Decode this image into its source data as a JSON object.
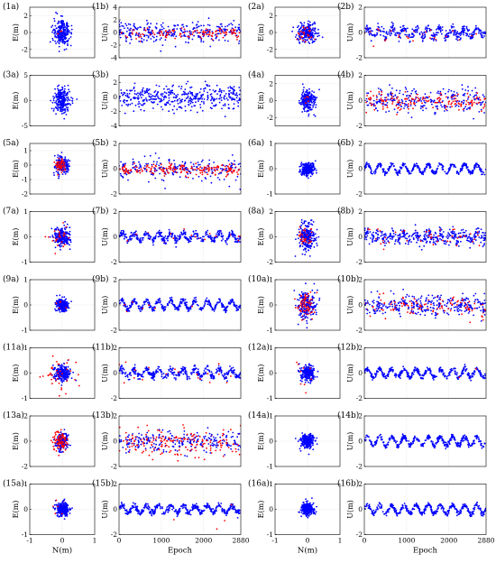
{
  "figure": {
    "n_rows": 8,
    "n_pairs_per_row": 2,
    "colors": {
      "series_red": "#ff0000",
      "series_blue": "#0000ff",
      "grid": "#d9d9d9",
      "axis": "#000000"
    },
    "x_axis_bottom_scatter": {
      "label": "N(m)",
      "ticks": [
        "-1",
        "0",
        "1"
      ]
    },
    "x_axis_bottom_time": {
      "label": "Epoch",
      "ticks": [
        "0",
        "1000",
        "2000",
        "2880"
      ]
    }
  },
  "chart_data": [
    {
      "id": "1a",
      "type": "scatter",
      "label": "(1a)",
      "ylabel": "E(m)",
      "yticks": [
        "2",
        "0",
        "-2"
      ],
      "ylim": [
        -3,
        3
      ],
      "xlim": [
        -1,
        1
      ],
      "spread": [
        0.12,
        0.8
      ],
      "red_spread": [
        0.08,
        0.3
      ],
      "red_frac": 0.02
    },
    {
      "id": "1b",
      "type": "scatter",
      "label": "(1b)",
      "ylabel": "U(m)",
      "yticks": [
        "4",
        "2",
        "0",
        "-2",
        "-4"
      ],
      "ylim": [
        -4,
        4
      ],
      "xlim": [
        0,
        2880
      ],
      "noise": 0.8,
      "red_noise": 0.35,
      "red_frac": 0.25,
      "amp": 0.3
    },
    {
      "id": "2a",
      "type": "scatter",
      "label": "(2a)",
      "ylabel": "E(m)",
      "yticks": [
        "2",
        "0",
        "-2"
      ],
      "ylim": [
        -3,
        3
      ],
      "xlim": [
        -1,
        1
      ],
      "spread": [
        0.15,
        0.55
      ],
      "red_spread": [
        0.12,
        0.5
      ],
      "red_frac": 0.15
    },
    {
      "id": "2b",
      "type": "scatter",
      "label": "(2b)",
      "ylabel": "U(m)",
      "yticks": [
        "2",
        "0",
        "-2"
      ],
      "ylim": [
        -2,
        2
      ],
      "xlim": [
        0,
        2880
      ],
      "noise": 0.2,
      "red_noise": 0.25,
      "red_frac": 0.08,
      "amp": 0.3
    },
    {
      "id": "3a",
      "type": "scatter",
      "label": "(3a)",
      "ylabel": "E(m)",
      "yticks": [
        "5",
        "0",
        "-5"
      ],
      "ylim": [
        -5,
        5
      ],
      "xlim": [
        -1,
        1
      ],
      "spread": [
        0.12,
        1.2
      ],
      "red_spread": [
        0.05,
        0.2
      ],
      "red_frac": 0.0
    },
    {
      "id": "3b",
      "type": "scatter",
      "label": "(3b)",
      "ylabel": "U(m)",
      "yticks": [
        "2",
        "0",
        "-2",
        "-4"
      ],
      "ylim": [
        -4,
        3
      ],
      "xlim": [
        0,
        2880
      ],
      "noise": 0.85,
      "red_noise": 0.3,
      "red_frac": 0.0,
      "amp": 0.25
    },
    {
      "id": "4a",
      "type": "scatter",
      "label": "(4a)",
      "ylabel": "E(m)",
      "yticks": [
        "2",
        "0",
        "-2"
      ],
      "ylim": [
        -3,
        3
      ],
      "xlim": [
        -1,
        1
      ],
      "spread": [
        0.1,
        0.6
      ],
      "red_spread": [
        0.06,
        0.25
      ],
      "red_frac": 0.05
    },
    {
      "id": "4b",
      "type": "scatter",
      "label": "(4b)",
      "ylabel": "U(m)",
      "yticks": [
        "2",
        "0",
        "-2"
      ],
      "ylim": [
        -2,
        2
      ],
      "xlim": [
        0,
        2880
      ],
      "noise": 0.45,
      "red_noise": 0.3,
      "red_frac": 0.45,
      "amp": 0.2
    },
    {
      "id": "5a",
      "type": "scatter",
      "label": "(5a)",
      "ylabel": "E(m)",
      "yticks": [
        "1",
        "0",
        "-1",
        "-2"
      ],
      "ylim": [
        -2,
        1.5
      ],
      "xlim": [
        -1,
        1
      ],
      "spread": [
        0.1,
        0.3
      ],
      "red_spread": [
        0.08,
        0.2
      ],
      "red_frac": 0.3
    },
    {
      "id": "5b",
      "type": "scatter",
      "label": "(5b)",
      "ylabel": "U(m)",
      "yticks": [
        "2",
        "0",
        "-2"
      ],
      "ylim": [
        -2,
        2
      ],
      "xlim": [
        0,
        2880
      ],
      "noise": 0.45,
      "red_noise": 0.2,
      "red_frac": 0.5,
      "amp": 0.15
    },
    {
      "id": "6a",
      "type": "scatter",
      "label": "(6a)",
      "ylabel": "E(m)",
      "yticks": [
        "1",
        "0",
        "-1"
      ],
      "ylim": [
        -1,
        1
      ],
      "xlim": [
        -1,
        1
      ],
      "spread": [
        0.1,
        0.12
      ],
      "red_spread": [
        0.05,
        0.05
      ],
      "red_frac": 0.0
    },
    {
      "id": "6b",
      "type": "scatter",
      "label": "(6b)",
      "ylabel": "U(m)",
      "yticks": [
        "2",
        "0",
        "-2"
      ],
      "ylim": [
        -2,
        2
      ],
      "xlim": [
        0,
        2880
      ],
      "noise": 0.08,
      "red_noise": 0.1,
      "red_frac": 0.0,
      "amp": 0.35
    },
    {
      "id": "7a",
      "type": "scatter",
      "label": "(7a)",
      "ylabel": "E(m)",
      "yticks": [
        "1",
        "0",
        "-1"
      ],
      "ylim": [
        -1,
        1
      ],
      "xlim": [
        -1,
        1
      ],
      "spread": [
        0.12,
        0.18
      ],
      "red_spread": [
        0.15,
        0.25
      ],
      "red_frac": 0.12
    },
    {
      "id": "7b",
      "type": "scatter",
      "label": "(7b)",
      "ylabel": "U(m)",
      "yticks": [
        "2",
        "0",
        "-2"
      ],
      "ylim": [
        -2,
        2
      ],
      "xlim": [
        0,
        2880
      ],
      "noise": 0.15,
      "red_noise": 0.2,
      "red_frac": 0.04,
      "amp": 0.3
    },
    {
      "id": "8a",
      "type": "scatter",
      "label": "(8a)",
      "ylabel": "E(m)",
      "yticks": [
        "2",
        "0",
        "-2"
      ],
      "ylim": [
        -2,
        2
      ],
      "xlim": [
        -1,
        1
      ],
      "spread": [
        0.13,
        0.55
      ],
      "red_spread": [
        0.15,
        0.35
      ],
      "red_frac": 0.15
    },
    {
      "id": "8b",
      "type": "scatter",
      "label": "(8b)",
      "ylabel": "U(m)",
      "yticks": [
        "2",
        "0",
        "-2"
      ],
      "ylim": [
        -2,
        2
      ],
      "xlim": [
        0,
        2880
      ],
      "noise": 0.3,
      "red_noise": 0.35,
      "red_frac": 0.15,
      "amp": 0.2
    },
    {
      "id": "9a",
      "type": "scatter",
      "label": "(9a)",
      "ylabel": "E(m)",
      "yticks": [
        "1",
        "0",
        "-1"
      ],
      "ylim": [
        -1,
        1
      ],
      "xlim": [
        -1,
        1
      ],
      "spread": [
        0.1,
        0.12
      ],
      "red_spread": [
        0.08,
        0.1
      ],
      "red_frac": 0.03
    },
    {
      "id": "9b",
      "type": "scatter",
      "label": "(9b)",
      "ylabel": "U(m)",
      "yticks": [
        "2",
        "0",
        "-2"
      ],
      "ylim": [
        -2,
        2
      ],
      "xlim": [
        0,
        2880
      ],
      "noise": 0.1,
      "red_noise": 0.1,
      "red_frac": 0.02,
      "amp": 0.35
    },
    {
      "id": "10a",
      "type": "scatter",
      "label": "(10a)",
      "ylabel": "E(m)",
      "yticks": [
        "1",
        "0",
        "-1"
      ],
      "ylim": [
        -1,
        1
      ],
      "xlim": [
        -1,
        1
      ],
      "spread": [
        0.15,
        0.3
      ],
      "red_spread": [
        0.12,
        0.25
      ],
      "red_frac": 0.35
    },
    {
      "id": "10b",
      "type": "scatter",
      "label": "(10b)",
      "ylabel": "U(m)",
      "yticks": [
        "2",
        "0",
        "-2"
      ],
      "ylim": [
        -2,
        2
      ],
      "xlim": [
        0,
        2880
      ],
      "noise": 0.4,
      "red_noise": 0.35,
      "red_frac": 0.3,
      "amp": 0.2
    },
    {
      "id": "11a",
      "type": "scatter",
      "label": "(11a)",
      "ylabel": "E(m)",
      "yticks": [
        "1",
        "0",
        "-1"
      ],
      "ylim": [
        -1,
        1
      ],
      "xlim": [
        -1,
        1
      ],
      "spread": [
        0.13,
        0.18
      ],
      "red_spread": [
        0.25,
        0.3
      ],
      "red_frac": 0.2
    },
    {
      "id": "11b",
      "type": "scatter",
      "label": "(11b)",
      "ylabel": "U(m)",
      "yticks": [
        "2",
        "0",
        "-2"
      ],
      "ylim": [
        -2,
        2
      ],
      "xlim": [
        0,
        2880
      ],
      "noise": 0.15,
      "red_noise": 0.45,
      "red_frac": 0.05,
      "amp": 0.3
    },
    {
      "id": "12a",
      "type": "scatter",
      "label": "(12a)",
      "ylabel": "E(m)",
      "yticks": [
        "1",
        "0",
        "-1"
      ],
      "ylim": [
        -1,
        1
      ],
      "xlim": [
        -1,
        1
      ],
      "spread": [
        0.1,
        0.15
      ],
      "red_spread": [
        0.2,
        0.3
      ],
      "red_frac": 0.02
    },
    {
      "id": "12b",
      "type": "scatter",
      "label": "(12b)",
      "ylabel": "U(m)",
      "yticks": [
        "2",
        "0",
        "-2"
      ],
      "ylim": [
        -2,
        2
      ],
      "xlim": [
        0,
        2880
      ],
      "noise": 0.1,
      "red_noise": 0.2,
      "red_frac": 0.01,
      "amp": 0.35
    },
    {
      "id": "13a",
      "type": "scatter",
      "label": "(13a)",
      "ylabel": "E(m)",
      "yticks": [
        "2",
        "0",
        "-2"
      ],
      "ylim": [
        -2,
        2
      ],
      "xlim": [
        -1,
        1
      ],
      "spread": [
        0.1,
        0.35
      ],
      "red_spread": [
        0.1,
        0.4
      ],
      "red_frac": 0.4
    },
    {
      "id": "13b",
      "type": "scatter",
      "label": "(13b)",
      "ylabel": "U(m)",
      "yticks": [
        "2",
        "0",
        "-2"
      ],
      "ylim": [
        -2,
        2
      ],
      "xlim": [
        0,
        2880
      ],
      "noise": 0.4,
      "red_noise": 0.55,
      "red_frac": 0.4,
      "amp": 0.15
    },
    {
      "id": "14a",
      "type": "scatter",
      "label": "(14a)",
      "ylabel": "E(m)",
      "yticks": [
        "1",
        "0",
        "-1"
      ],
      "ylim": [
        -1,
        1
      ],
      "xlim": [
        -1,
        1
      ],
      "spread": [
        0.1,
        0.13
      ],
      "red_spread": [
        0.05,
        0.05
      ],
      "red_frac": 0.0
    },
    {
      "id": "14b",
      "type": "scatter",
      "label": "(14b)",
      "ylabel": "U(m)",
      "yticks": [
        "2",
        "0",
        "-2"
      ],
      "ylim": [
        -2,
        2
      ],
      "xlim": [
        0,
        2880
      ],
      "noise": 0.1,
      "red_noise": 0.1,
      "red_frac": 0.0,
      "amp": 0.35
    },
    {
      "id": "15a",
      "type": "scatter",
      "label": "(15a)",
      "ylabel": "E(m)",
      "yticks": [
        "1",
        "0",
        "-1"
      ],
      "ylim": [
        -1,
        1
      ],
      "xlim": [
        -1,
        1
      ],
      "spread": [
        0.1,
        0.13
      ],
      "red_spread": [
        0.2,
        0.25
      ],
      "red_frac": 0.02
    },
    {
      "id": "15b",
      "type": "scatter",
      "label": "(15b)",
      "ylabel": "U(m)",
      "yticks": [
        "2",
        "0",
        "-2"
      ],
      "ylim": [
        -2,
        2
      ],
      "xlim": [
        0,
        2880
      ],
      "noise": 0.12,
      "red_noise": 0.6,
      "red_frac": 0.01,
      "amp": 0.3
    },
    {
      "id": "16a",
      "type": "scatter",
      "label": "(16a)",
      "ylabel": "E(m)",
      "yticks": [
        "1",
        "0",
        "-1"
      ],
      "ylim": [
        -1,
        1
      ],
      "xlim": [
        -1,
        1
      ],
      "spread": [
        0.1,
        0.13
      ],
      "red_spread": [
        0.05,
        0.05
      ],
      "red_frac": 0.0
    },
    {
      "id": "16b",
      "type": "scatter",
      "label": "(16b)",
      "ylabel": "U(m)",
      "yticks": [
        "2",
        "0",
        "-2"
      ],
      "ylim": [
        -2,
        2
      ],
      "xlim": [
        0,
        2880
      ],
      "noise": 0.1,
      "red_noise": 0.1,
      "red_frac": 0.0,
      "amp": 0.35
    }
  ]
}
